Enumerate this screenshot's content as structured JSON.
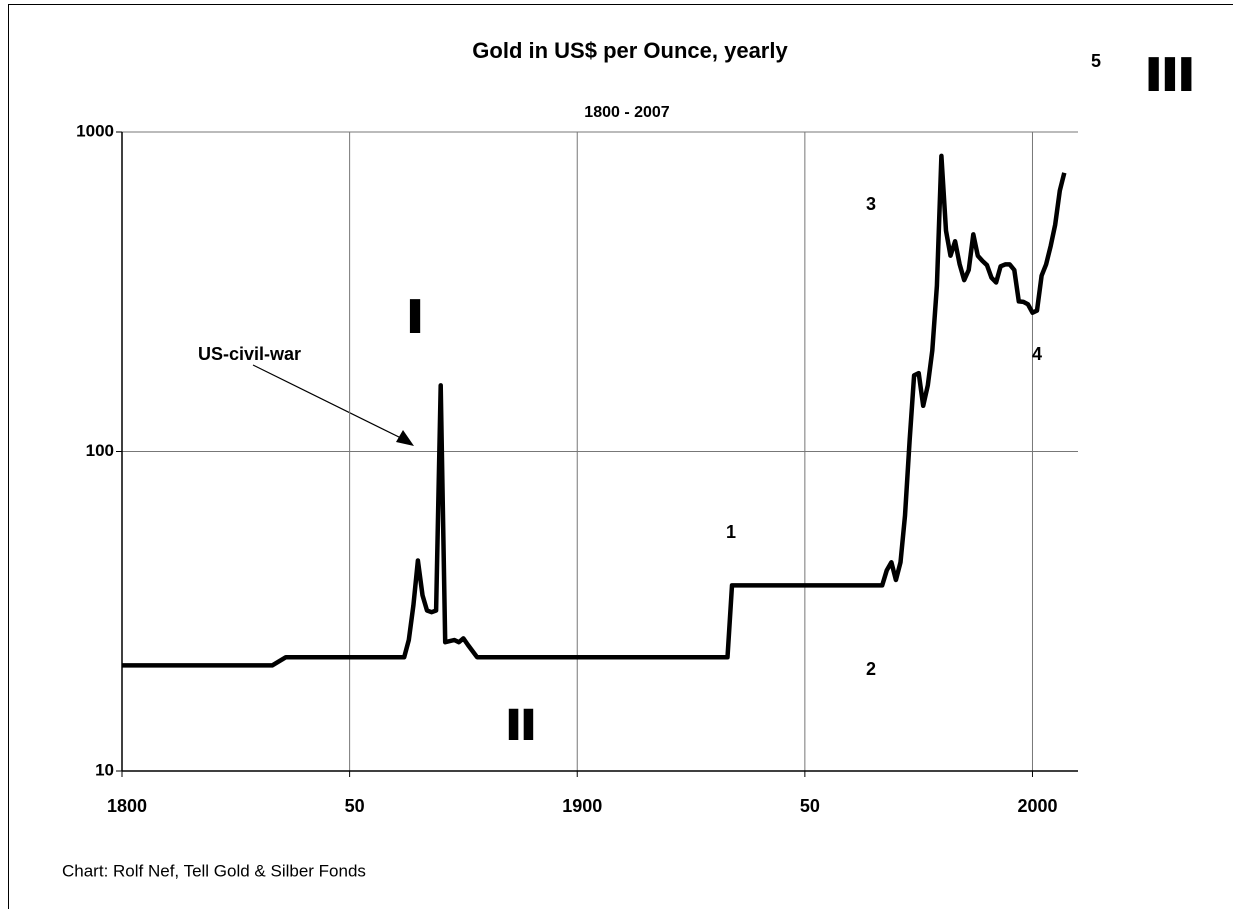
{
  "chart_data": {
    "type": "line",
    "title": "Gold in US$ per Ounce, yearly",
    "subtitle": "1800 -  2007",
    "footer": "Chart: Rolf Nef, Tell Gold & Silber Fonds",
    "annotations": [
      "US-civil-war",
      "I",
      "II",
      "III",
      "1",
      "2",
      "3",
      "4",
      "5"
    ],
    "x": [
      1800,
      1833,
      1836,
      1862,
      1863,
      1864,
      1865,
      1866,
      1867,
      1868,
      1869,
      1870,
      1871,
      1873,
      1874,
      1875,
      1876,
      1878,
      1933,
      1934,
      1967,
      1968,
      1969,
      1970,
      1971,
      1972,
      1973,
      1974,
      1975,
      1976,
      1977,
      1978,
      1979,
      1980,
      1981,
      1982,
      1983,
      1984,
      1985,
      1986,
      1987,
      1988,
      1989,
      1990,
      1991,
      1992,
      1993,
      1994,
      1995,
      1996,
      1997,
      1998,
      1999,
      2000,
      2001,
      2002,
      2003,
      2004,
      2005,
      2006,
      2007
    ],
    "series": [
      {
        "color": "#000000",
        "values": [
          21.4,
          21.4,
          22.7,
          22.7,
          25.7,
          33,
          45.6,
          35.5,
          31.8,
          31.4,
          31.8,
          161,
          25.3,
          25.7,
          25.3,
          26,
          24.8,
          22.7,
          22.7,
          38.1,
          38.1,
          42.5,
          45,
          39.6,
          45,
          63,
          108,
          173,
          176,
          139,
          161,
          207,
          330,
          842,
          491,
          410,
          455,
          386,
          344,
          370,
          478,
          410,
          395,
          383,
          350,
          338,
          380,
          385,
          385,
          370,
          295,
          294,
          289,
          272,
          276,
          355,
          385,
          440,
          513,
          655,
          745
        ]
      }
    ],
    "xlim": [
      1800,
      2010
    ],
    "xticks": [
      1800,
      {
        "value": 1850,
        "label": "50"
      },
      1900,
      {
        "value": 1950,
        "label": "50"
      },
      2000
    ],
    "ylim": [
      10,
      1000
    ],
    "yticks": [
      10,
      100,
      1000
    ],
    "log_y": true,
    "grid": true
  }
}
